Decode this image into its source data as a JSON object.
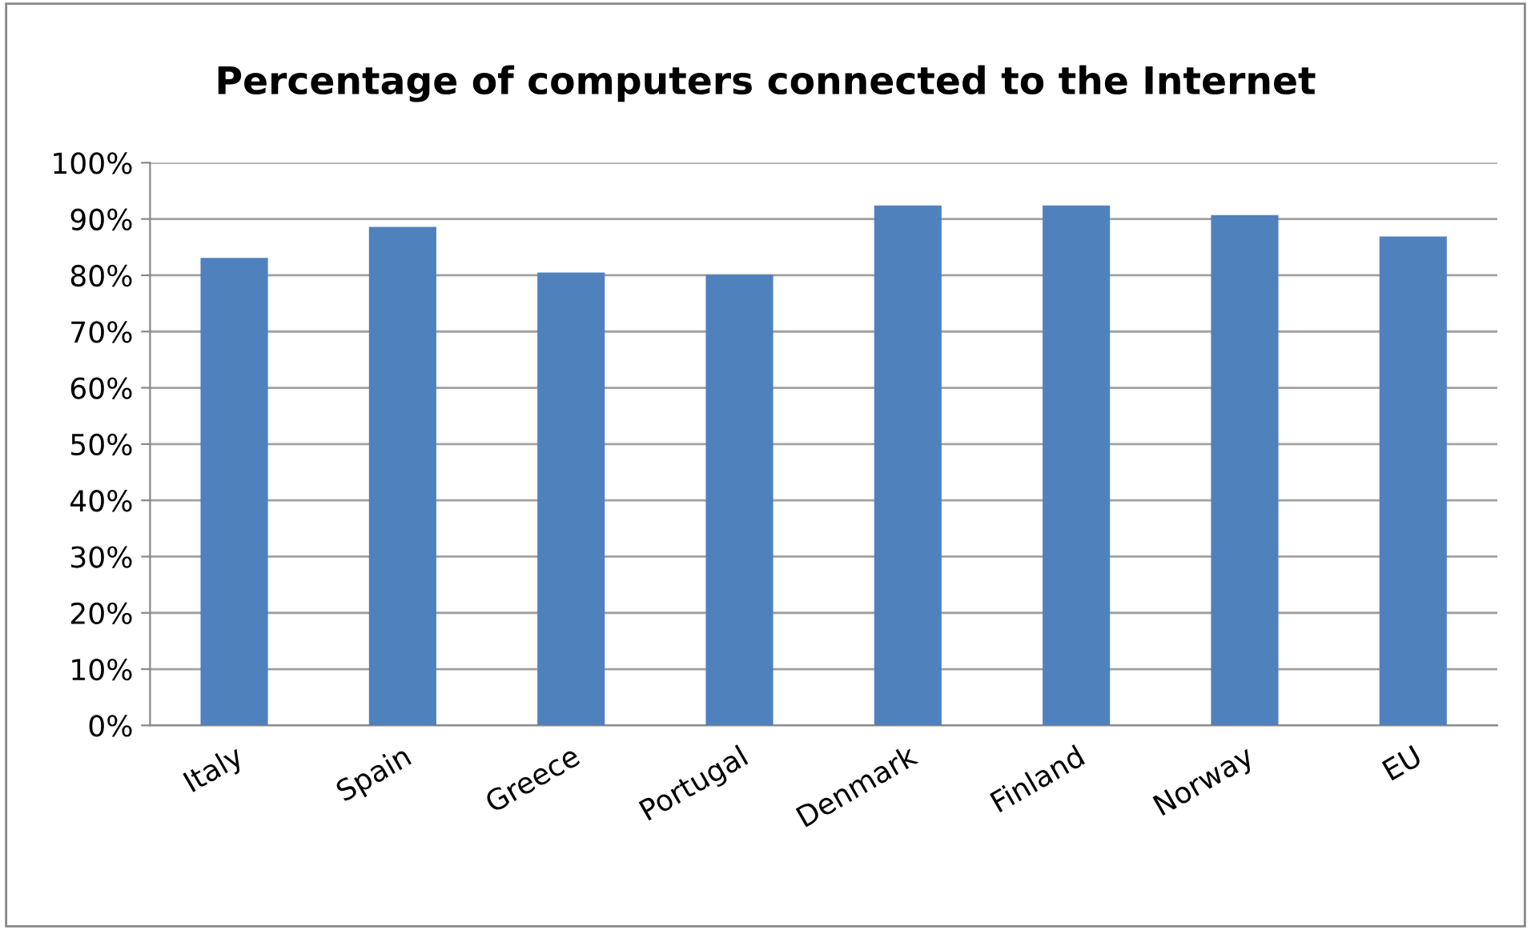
{
  "chart_data": {
    "type": "bar",
    "title": "Percentage of computers connected to the Internet",
    "categories": [
      "Italy",
      "Spain",
      "Greece",
      "Portugal",
      "Denmark",
      "Finland",
      "Norway",
      "EU"
    ],
    "values": [
      83.1,
      88.6,
      80.5,
      80.1,
      92.4,
      92.4,
      90.7,
      86.9
    ],
    "color": "#4f81bd",
    "ylim": [
      0,
      100
    ],
    "yticks": [
      {
        "value": 0,
        "label": "0%"
      },
      {
        "value": 10,
        "label": "10%"
      },
      {
        "value": 20,
        "label": "20%"
      },
      {
        "value": 30,
        "label": "30%"
      },
      {
        "value": 40,
        "label": "40%"
      },
      {
        "value": 50,
        "label": "50%"
      },
      {
        "value": 60,
        "label": "60%"
      },
      {
        "value": 70,
        "label": "70%"
      },
      {
        "value": 80,
        "label": "80%"
      },
      {
        "value": 90,
        "label": "90%"
      },
      {
        "value": 100,
        "label": "100%"
      }
    ],
    "grid": "y",
    "legend": false
  }
}
